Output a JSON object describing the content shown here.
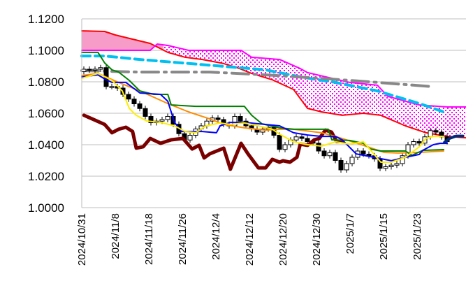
{
  "chart_data": {
    "type": "line",
    "title": "",
    "xlabel": "",
    "ylabel": "",
    "ylim": [
      1.0,
      1.12
    ],
    "xlim_day_index": [
      0,
      68.75
    ],
    "grid": "horizontal",
    "y_ticks": [
      "1.0000",
      "1.0200",
      "1.0400",
      "1.0600",
      "1.0800",
      "1.1000",
      "1.1200"
    ],
    "y_tick_values": [
      1.0,
      1.02,
      1.04,
      1.06,
      1.08,
      1.1,
      1.12
    ],
    "x_ticks": [
      {
        "day": 0,
        "label": "2024/10/31"
      },
      {
        "day": 6,
        "label": "2024/11/8"
      },
      {
        "day": 12,
        "label": "2024/11/18"
      },
      {
        "day": 18,
        "label": "2024/11/26"
      },
      {
        "day": 24,
        "label": "2024/12/4"
      },
      {
        "day": 30,
        "label": "2024/12/12"
      },
      {
        "day": 36,
        "label": "2024/12/20"
      },
      {
        "day": 42,
        "label": "2024/12/30"
      },
      {
        "day": 48,
        "label": "2025/1/7"
      },
      {
        "day": 54,
        "label": "2025/1/15"
      },
      {
        "day": 60,
        "label": "2025/1/23"
      }
    ],
    "candles_close": [
      1.088,
      1.0875,
      1.088,
      1.089,
      1.077,
      1.077,
      1.076,
      1.072,
      1.069,
      1.066,
      1.063,
      1.058,
      1.054,
      1.055,
      1.056,
      1.058,
      1.053,
      1.047,
      1.043,
      1.046,
      1.05,
      1.052,
      1.055,
      1.057,
      1.056,
      1.053,
      1.052,
      1.058,
      1.055,
      1.052,
      1.05,
      1.048,
      1.05,
      1.051,
      1.046,
      1.037,
      1.04,
      1.043,
      1.045,
      1.044,
      1.042,
      1.041,
      1.036,
      1.033,
      1.035,
      1.03,
      1.024,
      1.028,
      1.032,
      1.036,
      1.034,
      1.033,
      1.031,
      1.025,
      1.026,
      1.027,
      1.028,
      1.033,
      1.04,
      1.042,
      1.041,
      1.045,
      1.049,
      1.048,
      1.045,
      1.042
    ],
    "candles_first_open": 1.0865,
    "colors": {
      "up": "#ffffff",
      "down": "#000000",
      "cloud_solid": "#f79bc8",
      "cloud_dots": "#ff00ff"
    },
    "series": [
      {
        "name": "senkou-span-b",
        "color": "#ff0000",
        "width": 2,
        "dash": "",
        "points": [
          [
            0,
            1.1124
          ],
          [
            4.1,
            1.112
          ],
          [
            6,
            1.1098
          ],
          [
            8.5,
            1.1076
          ],
          [
            12.25,
            1.1044
          ],
          [
            15.4,
            1.0987
          ],
          [
            18.5,
            1.0956
          ],
          [
            21.6,
            1.0942
          ],
          [
            25.4,
            1.0916
          ],
          [
            27.9,
            1.0889
          ],
          [
            30.4,
            1.0853
          ],
          [
            34.1,
            1.0813
          ],
          [
            37.9,
            1.0751
          ],
          [
            40.4,
            1.0631
          ],
          [
            42.9,
            1.0609
          ],
          [
            46.6,
            1.0587
          ],
          [
            50.4,
            1.06
          ],
          [
            53.5,
            1.0587
          ],
          [
            57.9,
            1.052
          ],
          [
            61.6,
            1.0476
          ],
          [
            65.4,
            1.0453
          ],
          [
            68.75,
            1.0444
          ]
        ]
      },
      {
        "name": "senkou-span-a",
        "color": "#ff00ff",
        "width": 2,
        "dash": "",
        "points": [
          [
            0,
            1.1
          ],
          [
            12.25,
            1.1
          ],
          [
            13.5,
            1.104
          ],
          [
            15.4,
            1.1031
          ],
          [
            19.1,
            1.1
          ],
          [
            28.5,
            1.1
          ],
          [
            30.4,
            1.0956
          ],
          [
            35.4,
            1.0942
          ],
          [
            39.1,
            1.0884
          ],
          [
            40.4,
            1.0858
          ],
          [
            47.9,
            1.0796
          ],
          [
            52.9,
            1.0778
          ],
          [
            54.75,
            1.0707
          ],
          [
            60.4,
            1.0653
          ],
          [
            65.4,
            1.064
          ],
          [
            68.75,
            1.064
          ]
        ]
      },
      {
        "name": "moving-average-long",
        "color": "#00c0f0",
        "width": 4,
        "dash": "12 7",
        "points": [
          [
            0,
            1.0964
          ],
          [
            4.1,
            1.0964
          ],
          [
            10.4,
            1.0942
          ],
          [
            17.9,
            1.092
          ],
          [
            25.4,
            1.0898
          ],
          [
            32.9,
            1.0876
          ],
          [
            39.1,
            1.0831
          ],
          [
            45.4,
            1.0796
          ],
          [
            52.9,
            1.0742
          ],
          [
            60.4,
            1.0662
          ],
          [
            64.75,
            1.0609
          ]
        ]
      },
      {
        "name": "moving-average-gray",
        "color": "#888888",
        "width": 4,
        "dash": "24 8 3 8",
        "points": [
          [
            0,
            1.0871
          ],
          [
            10.4,
            1.0862
          ],
          [
            22.9,
            1.0862
          ],
          [
            32.9,
            1.0844
          ],
          [
            42.9,
            1.0822
          ],
          [
            52.9,
            1.0796
          ],
          [
            62.9,
            1.0769
          ]
        ]
      },
      {
        "name": "chikou-span",
        "color": "#7a0000",
        "width": 5,
        "dash": "",
        "points": [
          [
            0.4,
            1.0587
          ],
          [
            4.1,
            1.0529
          ],
          [
            5.4,
            1.0476
          ],
          [
            6.6,
            1.0498
          ],
          [
            7.9,
            1.0511
          ],
          [
            9.1,
            1.0484
          ],
          [
            9.75,
            1.0378
          ],
          [
            11,
            1.0387
          ],
          [
            12.25,
            1.044
          ],
          [
            14.1,
            1.0409
          ],
          [
            16,
            1.0431
          ],
          [
            18.1,
            1.044
          ],
          [
            19.75,
            1.0373
          ],
          [
            21,
            1.0396
          ],
          [
            21.9,
            1.0316
          ],
          [
            22.9,
            1.0342
          ],
          [
            25.4,
            1.0378
          ],
          [
            26.6,
            1.0244
          ],
          [
            28.5,
            1.0409
          ],
          [
            29.75,
            1.0342
          ],
          [
            31.6,
            1.0253
          ],
          [
            32.9,
            1.0253
          ],
          [
            34.1,
            1.0307
          ],
          [
            35.4,
            1.0289
          ],
          [
            36,
            1.0298
          ],
          [
            37.25,
            1.0289
          ],
          [
            38.5,
            1.032
          ],
          [
            39.1,
            1.0404
          ],
          [
            40.4,
            1.0396
          ],
          [
            41.6,
            1.0431
          ],
          [
            42.5,
            1.044
          ],
          [
            43.6,
            1.0493
          ],
          [
            44.7,
            1.048
          ],
          [
            45.6,
            1.042
          ],
          [
            46.6,
            1.042
          ]
        ]
      },
      {
        "name": "kijun-sen",
        "color": "#008000",
        "width": 2,
        "dash": "",
        "points": [
          [
            0,
            1.0987
          ],
          [
            2.9,
            1.0987
          ],
          [
            4.1,
            1.092
          ],
          [
            5.4,
            1.0876
          ],
          [
            6.6,
            1.0862
          ],
          [
            8.5,
            1.0809
          ],
          [
            10.4,
            1.0742
          ],
          [
            12.9,
            1.072
          ],
          [
            15.4,
            1.072
          ],
          [
            16,
            1.0653
          ],
          [
            20.4,
            1.0644
          ],
          [
            29.1,
            1.0644
          ],
          [
            30.4,
            1.0587
          ],
          [
            32.25,
            1.0533
          ],
          [
            35.4,
            1.0507
          ],
          [
            37.9,
            1.0498
          ],
          [
            44.1,
            1.0498
          ],
          [
            44.75,
            1.0431
          ],
          [
            47.9,
            1.0427
          ],
          [
            50.4,
            1.0409
          ],
          [
            51.6,
            1.0373
          ],
          [
            53.5,
            1.036
          ],
          [
            57.9,
            1.036
          ],
          [
            59.1,
            1.0333
          ],
          [
            61,
            1.0364
          ],
          [
            64.75,
            1.0369
          ]
        ]
      },
      {
        "name": "tenkan-sen",
        "color": "#0000ff",
        "width": 2,
        "dash": "",
        "points": [
          [
            0,
            1.0831
          ],
          [
            2.9,
            1.0844
          ],
          [
            4.1,
            1.0818
          ],
          [
            5.4,
            1.0796
          ],
          [
            7.9,
            1.0796
          ],
          [
            10.4,
            1.0729
          ],
          [
            14.1,
            1.072
          ],
          [
            15.4,
            1.0676
          ],
          [
            16.6,
            1.0542
          ],
          [
            17.9,
            1.0484
          ],
          [
            21.6,
            1.0484
          ],
          [
            24.1,
            1.0476
          ],
          [
            24.75,
            1.052
          ],
          [
            26.6,
            1.0542
          ],
          [
            29.1,
            1.0542
          ],
          [
            32.9,
            1.0529
          ],
          [
            35.4,
            1.052
          ],
          [
            37.9,
            1.0476
          ],
          [
            40.4,
            1.0462
          ],
          [
            42.9,
            1.0453
          ],
          [
            45.4,
            1.0453
          ],
          [
            46.6,
            1.0431
          ],
          [
            49.1,
            1.0342
          ],
          [
            55.4,
            1.0298
          ],
          [
            57.9,
            1.032
          ],
          [
            60.4,
            1.0338
          ],
          [
            61,
            1.0364
          ],
          [
            62.9,
            1.04
          ],
          [
            64.1,
            1.0409
          ],
          [
            65.4,
            1.0409
          ]
        ]
      },
      {
        "name": "tenkan-sen-forward",
        "color": "#002a7a",
        "width": 4,
        "dash": "",
        "points": [
          [
            64.9,
            1.0415
          ],
          [
            65.8,
            1.044
          ],
          [
            67.0,
            1.0455
          ],
          [
            68.2,
            1.0455
          ]
        ]
      },
      {
        "name": "moving-average-orange",
        "color": "#ff8c00",
        "width": 2,
        "dash": "",
        "points": [
          [
            0,
            1.084
          ],
          [
            2.9,
            1.0853
          ],
          [
            6.6,
            1.0796
          ],
          [
            10.4,
            1.0742
          ],
          [
            15.4,
            1.0662
          ],
          [
            19.1,
            1.0609
          ],
          [
            22.9,
            1.0564
          ],
          [
            25.4,
            1.0529
          ],
          [
            29.1,
            1.0507
          ],
          [
            32.9,
            1.0493
          ],
          [
            35.4,
            1.0498
          ],
          [
            37.9,
            1.0498
          ],
          [
            42.9,
            1.0476
          ],
          [
            45.4,
            1.0453
          ],
          [
            50.4,
            1.0396
          ],
          [
            54.1,
            1.0351
          ],
          [
            56.6,
            1.0347
          ],
          [
            60.4,
            1.0351
          ],
          [
            64.75,
            1.036
          ]
        ]
      },
      {
        "name": "moving-average-yellow",
        "color": "#ffee00",
        "width": 2,
        "dash": "",
        "points": [
          [
            0,
            1.0822
          ],
          [
            2.9,
            1.0853
          ],
          [
            5.4,
            1.0809
          ],
          [
            7.25,
            1.0742
          ],
          [
            8.5,
            1.0631
          ],
          [
            9.75,
            1.0587
          ],
          [
            11.6,
            1.0551
          ],
          [
            14.1,
            1.0542
          ],
          [
            16.6,
            1.052
          ],
          [
            18.5,
            1.0484
          ],
          [
            20.4,
            1.0476
          ],
          [
            22.25,
            1.052
          ],
          [
            24.75,
            1.0538
          ],
          [
            26.6,
            1.0529
          ],
          [
            29.1,
            1.0538
          ],
          [
            31.6,
            1.052
          ],
          [
            34.1,
            1.0498
          ],
          [
            35.4,
            1.0467
          ],
          [
            37.9,
            1.0418
          ],
          [
            40.4,
            1.04
          ],
          [
            42.9,
            1.0391
          ],
          [
            45.4,
            1.0418
          ],
          [
            47.9,
            1.0404
          ],
          [
            50.4,
            1.0418
          ],
          [
            53.5,
            1.0289
          ],
          [
            55.4,
            1.0289
          ],
          [
            57.9,
            1.032
          ],
          [
            60.4,
            1.0387
          ],
          [
            61.6,
            1.044
          ],
          [
            62.9,
            1.0453
          ],
          [
            64.75,
            1.0453
          ]
        ]
      }
    ]
  }
}
